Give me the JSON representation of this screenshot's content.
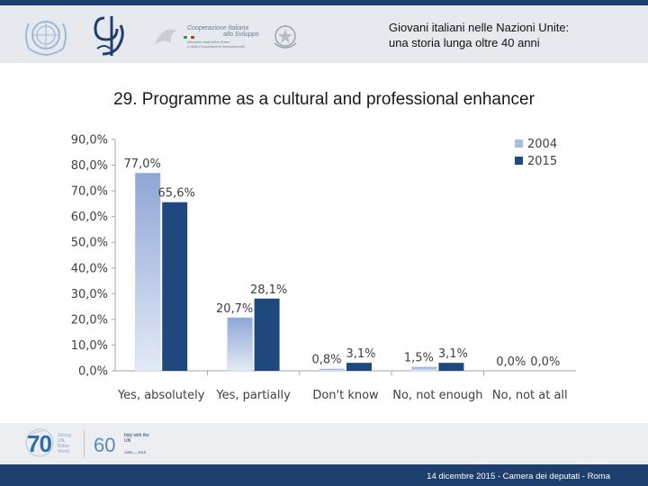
{
  "header": {
    "title_line1": "Giovani italiani nelle Nazioni Unite:",
    "title_line2": "una storia lunga oltre 40 anni",
    "logos": [
      "un-emblem-icon",
      "ministry-monogram-icon",
      "cooperazione-italiana-icon",
      "republic-emblem-icon"
    ],
    "cooperazione_line1": "Cooperazione Italiana",
    "cooperazione_line2": "allo Sviluppo",
    "cooperazione_sub1": "Ministero degli Affari Esteri",
    "cooperazione_sub2": "e della Cooperazione Internazionale"
  },
  "slide_title": "29. Programme as a cultural and professional enhancer",
  "chart_data": {
    "type": "bar",
    "title": "",
    "categories": [
      "Yes, absolutely",
      "Yes, partially",
      "Don't know",
      "No, not enough",
      "No, not at all"
    ],
    "series": [
      {
        "name": "2004",
        "values": [
          77.0,
          20.7,
          0.8,
          1.5,
          0.0
        ],
        "labels": [
          "77,0%",
          "20,7%",
          "0,8%",
          "1,5%",
          "0,0%"
        ],
        "color": "#a9bde3"
      },
      {
        "name": "2015",
        "values": [
          65.6,
          28.1,
          3.1,
          3.1,
          0.0
        ],
        "labels": [
          "65,6%",
          "28,1%",
          "3,1%",
          "3,1%",
          "0,0%"
        ],
        "color": "#1f497d"
      }
    ],
    "y_ticks": [
      "0,0%",
      "10,0%",
      "20,0%",
      "30,0%",
      "40,0%",
      "50,0%",
      "60,0%",
      "70,0%",
      "80,0%",
      "90,0%"
    ],
    "ylim": [
      0,
      90
    ],
    "xlabel": "",
    "ylabel": "",
    "grid": false,
    "legend_position": "top-right"
  },
  "footer": {
    "text": "14 dicembre 2015 - Camera dei deputati - Roma",
    "logo70_number": "70",
    "logo70_tagline": "Strong UN. Better World.",
    "logo60_number": "60",
    "logo60_text": "Italy with the UN",
    "logo60_years": "1955 — 2015"
  }
}
